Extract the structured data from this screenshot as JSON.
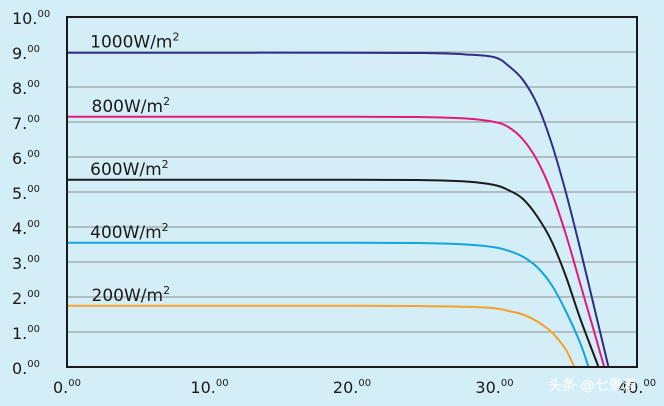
{
  "chart_data": {
    "type": "line",
    "xlim": [
      0,
      40
    ],
    "ylim": [
      0,
      10
    ],
    "grid": "horizontal",
    "x_ticks": [
      {
        "value": 0,
        "main": "0.",
        "sup": "00"
      },
      {
        "value": 10,
        "main": "10.",
        "sup": "00"
      },
      {
        "value": 20,
        "main": "20.",
        "sup": "00"
      },
      {
        "value": 30,
        "main": "30.",
        "sup": "00"
      },
      {
        "value": 40,
        "main": "40.",
        "sup": "00"
      }
    ],
    "y_ticks": [
      {
        "value": 0,
        "main": "0.",
        "sup": "00"
      },
      {
        "value": 1,
        "main": "1.",
        "sup": "00"
      },
      {
        "value": 2,
        "main": "2.",
        "sup": "00"
      },
      {
        "value": 3,
        "main": "3.",
        "sup": "00"
      },
      {
        "value": 4,
        "main": "4.",
        "sup": "00"
      },
      {
        "value": 5,
        "main": "5.",
        "sup": "00"
      },
      {
        "value": 6,
        "main": "6.",
        "sup": "00"
      },
      {
        "value": 7,
        "main": "7.",
        "sup": "00"
      },
      {
        "value": 8,
        "main": "8.",
        "sup": "00"
      },
      {
        "value": 9,
        "main": "9.",
        "sup": "00"
      },
      {
        "value": 10,
        "main": "10.",
        "sup": "00"
      }
    ],
    "series": [
      {
        "name": "1000W/m2",
        "label_main": "1000W/m",
        "label_sup": "2",
        "color": "#2e2e86",
        "label_at": [
          0.5,
          9.05
        ],
        "points": [
          [
            0,
            8.98
          ],
          [
            10,
            8.98
          ],
          [
            20,
            8.98
          ],
          [
            25,
            8.97
          ],
          [
            28,
            8.93
          ],
          [
            30,
            8.85
          ],
          [
            31,
            8.6
          ],
          [
            32,
            8.2
          ],
          [
            33,
            7.5
          ],
          [
            34,
            6.4
          ],
          [
            35,
            5.0
          ],
          [
            36,
            3.4
          ],
          [
            37,
            1.7
          ],
          [
            38,
            0
          ]
        ]
      },
      {
        "name": "800W/m2",
        "label_main": "800W/m",
        "label_sup": "2",
        "color": "#e0197a",
        "label_at": [
          0.6,
          7.2
        ],
        "points": [
          [
            0,
            7.15
          ],
          [
            10,
            7.15
          ],
          [
            20,
            7.15
          ],
          [
            25,
            7.14
          ],
          [
            28,
            7.1
          ],
          [
            30,
            7.0
          ],
          [
            31,
            6.85
          ],
          [
            32,
            6.5
          ],
          [
            33,
            5.9
          ],
          [
            34,
            5.0
          ],
          [
            35,
            3.8
          ],
          [
            36,
            2.4
          ],
          [
            37,
            1.0
          ],
          [
            37.7,
            0
          ]
        ]
      },
      {
        "name": "600W/m2",
        "label_main": "600W/m",
        "label_sup": "2",
        "color": "#1a1a1a",
        "label_at": [
          0.5,
          5.4
        ],
        "points": [
          [
            0,
            5.35
          ],
          [
            10,
            5.35
          ],
          [
            20,
            5.35
          ],
          [
            25,
            5.34
          ],
          [
            28,
            5.3
          ],
          [
            30,
            5.2
          ],
          [
            31,
            5.05
          ],
          [
            32,
            4.8
          ],
          [
            33,
            4.3
          ],
          [
            34,
            3.6
          ],
          [
            35,
            2.6
          ],
          [
            36,
            1.4
          ],
          [
            37.3,
            0
          ]
        ]
      },
      {
        "name": "400W/m2",
        "label_main": "400W/m",
        "label_sup": "2",
        "color": "#12a4dc",
        "label_at": [
          0.5,
          3.6
        ],
        "points": [
          [
            0,
            3.55
          ],
          [
            10,
            3.55
          ],
          [
            20,
            3.55
          ],
          [
            25,
            3.54
          ],
          [
            28,
            3.5
          ],
          [
            30,
            3.42
          ],
          [
            31,
            3.32
          ],
          [
            32,
            3.15
          ],
          [
            33,
            2.85
          ],
          [
            34,
            2.35
          ],
          [
            35,
            1.6
          ],
          [
            36,
            0.7
          ],
          [
            36.6,
            0
          ]
        ]
      },
      {
        "name": "200W/m2",
        "label_main": "200W/m",
        "label_sup": "2",
        "color": "#f5a12a",
        "label_at": [
          0.6,
          1.8
        ],
        "points": [
          [
            0,
            1.75
          ],
          [
            10,
            1.75
          ],
          [
            20,
            1.75
          ],
          [
            25,
            1.74
          ],
          [
            28,
            1.72
          ],
          [
            30,
            1.68
          ],
          [
            31,
            1.6
          ],
          [
            32,
            1.5
          ],
          [
            33,
            1.3
          ],
          [
            34,
            1.0
          ],
          [
            35,
            0.5
          ],
          [
            35.6,
            0
          ]
        ]
      }
    ]
  },
  "watermark": "头条 @七景源"
}
